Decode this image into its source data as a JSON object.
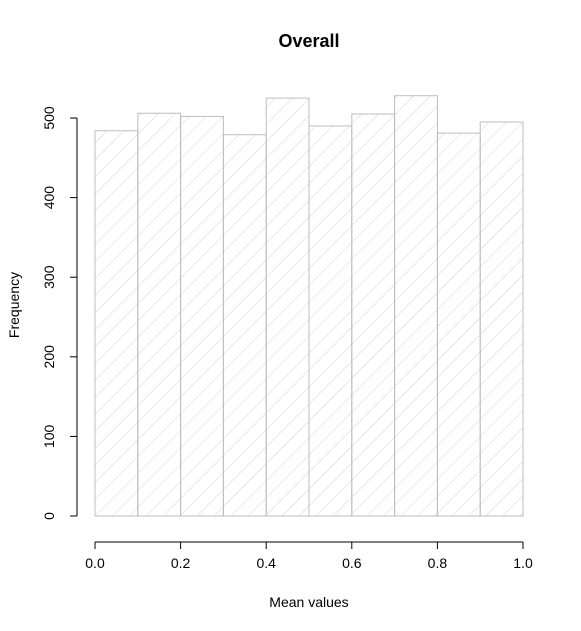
{
  "chart_data": {
    "type": "bar",
    "title": "Overall",
    "xlabel": "Mean values",
    "ylabel": "Frequency",
    "bins": [
      {
        "x0": 0.0,
        "x1": 0.1,
        "count": 484
      },
      {
        "x0": 0.1,
        "x1": 0.2,
        "count": 506
      },
      {
        "x0": 0.2,
        "x1": 0.3,
        "count": 502
      },
      {
        "x0": 0.3,
        "x1": 0.4,
        "count": 479
      },
      {
        "x0": 0.4,
        "x1": 0.5,
        "count": 525
      },
      {
        "x0": 0.5,
        "x1": 0.6,
        "count": 490
      },
      {
        "x0": 0.6,
        "x1": 0.7,
        "count": 505
      },
      {
        "x0": 0.7,
        "x1": 0.8,
        "count": 528
      },
      {
        "x0": 0.8,
        "x1": 0.9,
        "count": 481
      },
      {
        "x0": 0.9,
        "x1": 1.0,
        "count": 495
      }
    ],
    "xlim": [
      0,
      1
    ],
    "ylim": [
      0,
      500
    ],
    "xticks": [
      "0.0",
      "0.2",
      "0.4",
      "0.6",
      "0.8",
      "1.0"
    ],
    "yticks": [
      "0",
      "100",
      "200",
      "300",
      "400",
      "500"
    ],
    "grid": false,
    "fill": "diagonal hatching",
    "colors": {
      "bar_border": "#bdbdbd",
      "hatch": "#d3d3d3",
      "axis": "#000000"
    }
  }
}
